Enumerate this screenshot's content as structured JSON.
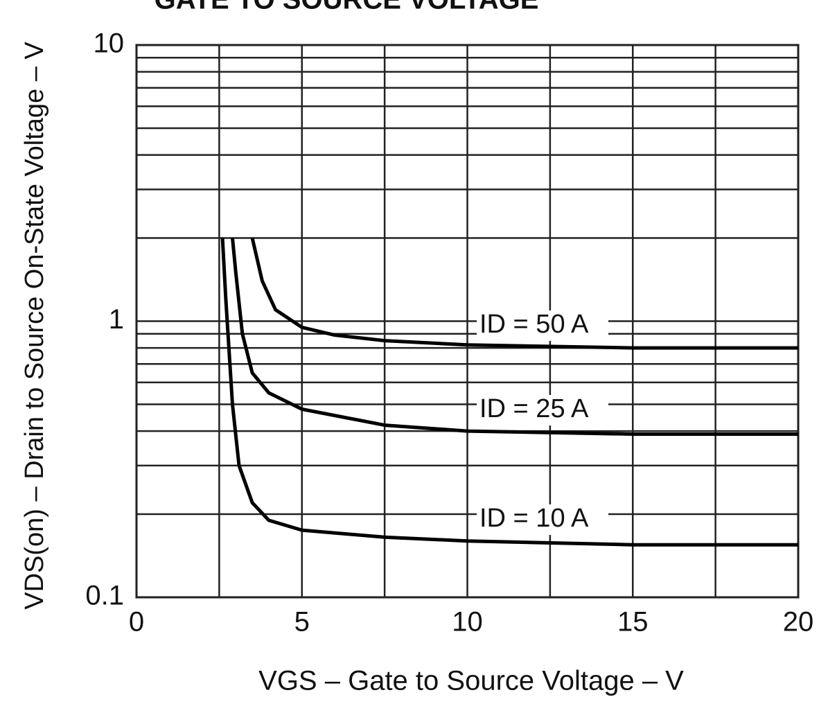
{
  "chart_data": {
    "type": "line",
    "title": "GATE TO SOURCE VOLTAGE",
    "xlabel": "VGS – Gate to Source Voltage – V",
    "ylabel": "VDS(on) – Drain to Source On-State Voltage – V",
    "xlim": [
      0,
      20
    ],
    "xticks": [
      0,
      5,
      10,
      15,
      20
    ],
    "ylim": [
      0.1,
      10
    ],
    "yticks": [
      0.1,
      1,
      10
    ],
    "yscale": "log",
    "grid": true,
    "minor_grid": true,
    "series": [
      {
        "name": "ID = 50 A",
        "color": "#000000",
        "x": [
          3.5,
          3.8,
          4.2,
          5,
          6,
          7.5,
          10,
          15,
          20
        ],
        "values": [
          2,
          1.4,
          1.1,
          0.95,
          0.89,
          0.85,
          0.82,
          0.8,
          0.8
        ]
      },
      {
        "name": "ID = 25 A",
        "color": "#000000",
        "x": [
          2.9,
          3.0,
          3.2,
          3.5,
          4,
          5,
          7.5,
          10,
          15,
          20
        ],
        "values": [
          2,
          1.5,
          0.9,
          0.65,
          0.55,
          0.48,
          0.42,
          0.4,
          0.39,
          0.39
        ]
      },
      {
        "name": "ID = 10 A",
        "color": "#000000",
        "x": [
          2.6,
          2.7,
          2.9,
          3.1,
          3.5,
          4,
          5,
          7.5,
          10,
          15,
          20
        ],
        "values": [
          2,
          1.2,
          0.5,
          0.3,
          0.22,
          0.19,
          0.175,
          0.165,
          0.16,
          0.155,
          0.155
        ]
      }
    ]
  }
}
